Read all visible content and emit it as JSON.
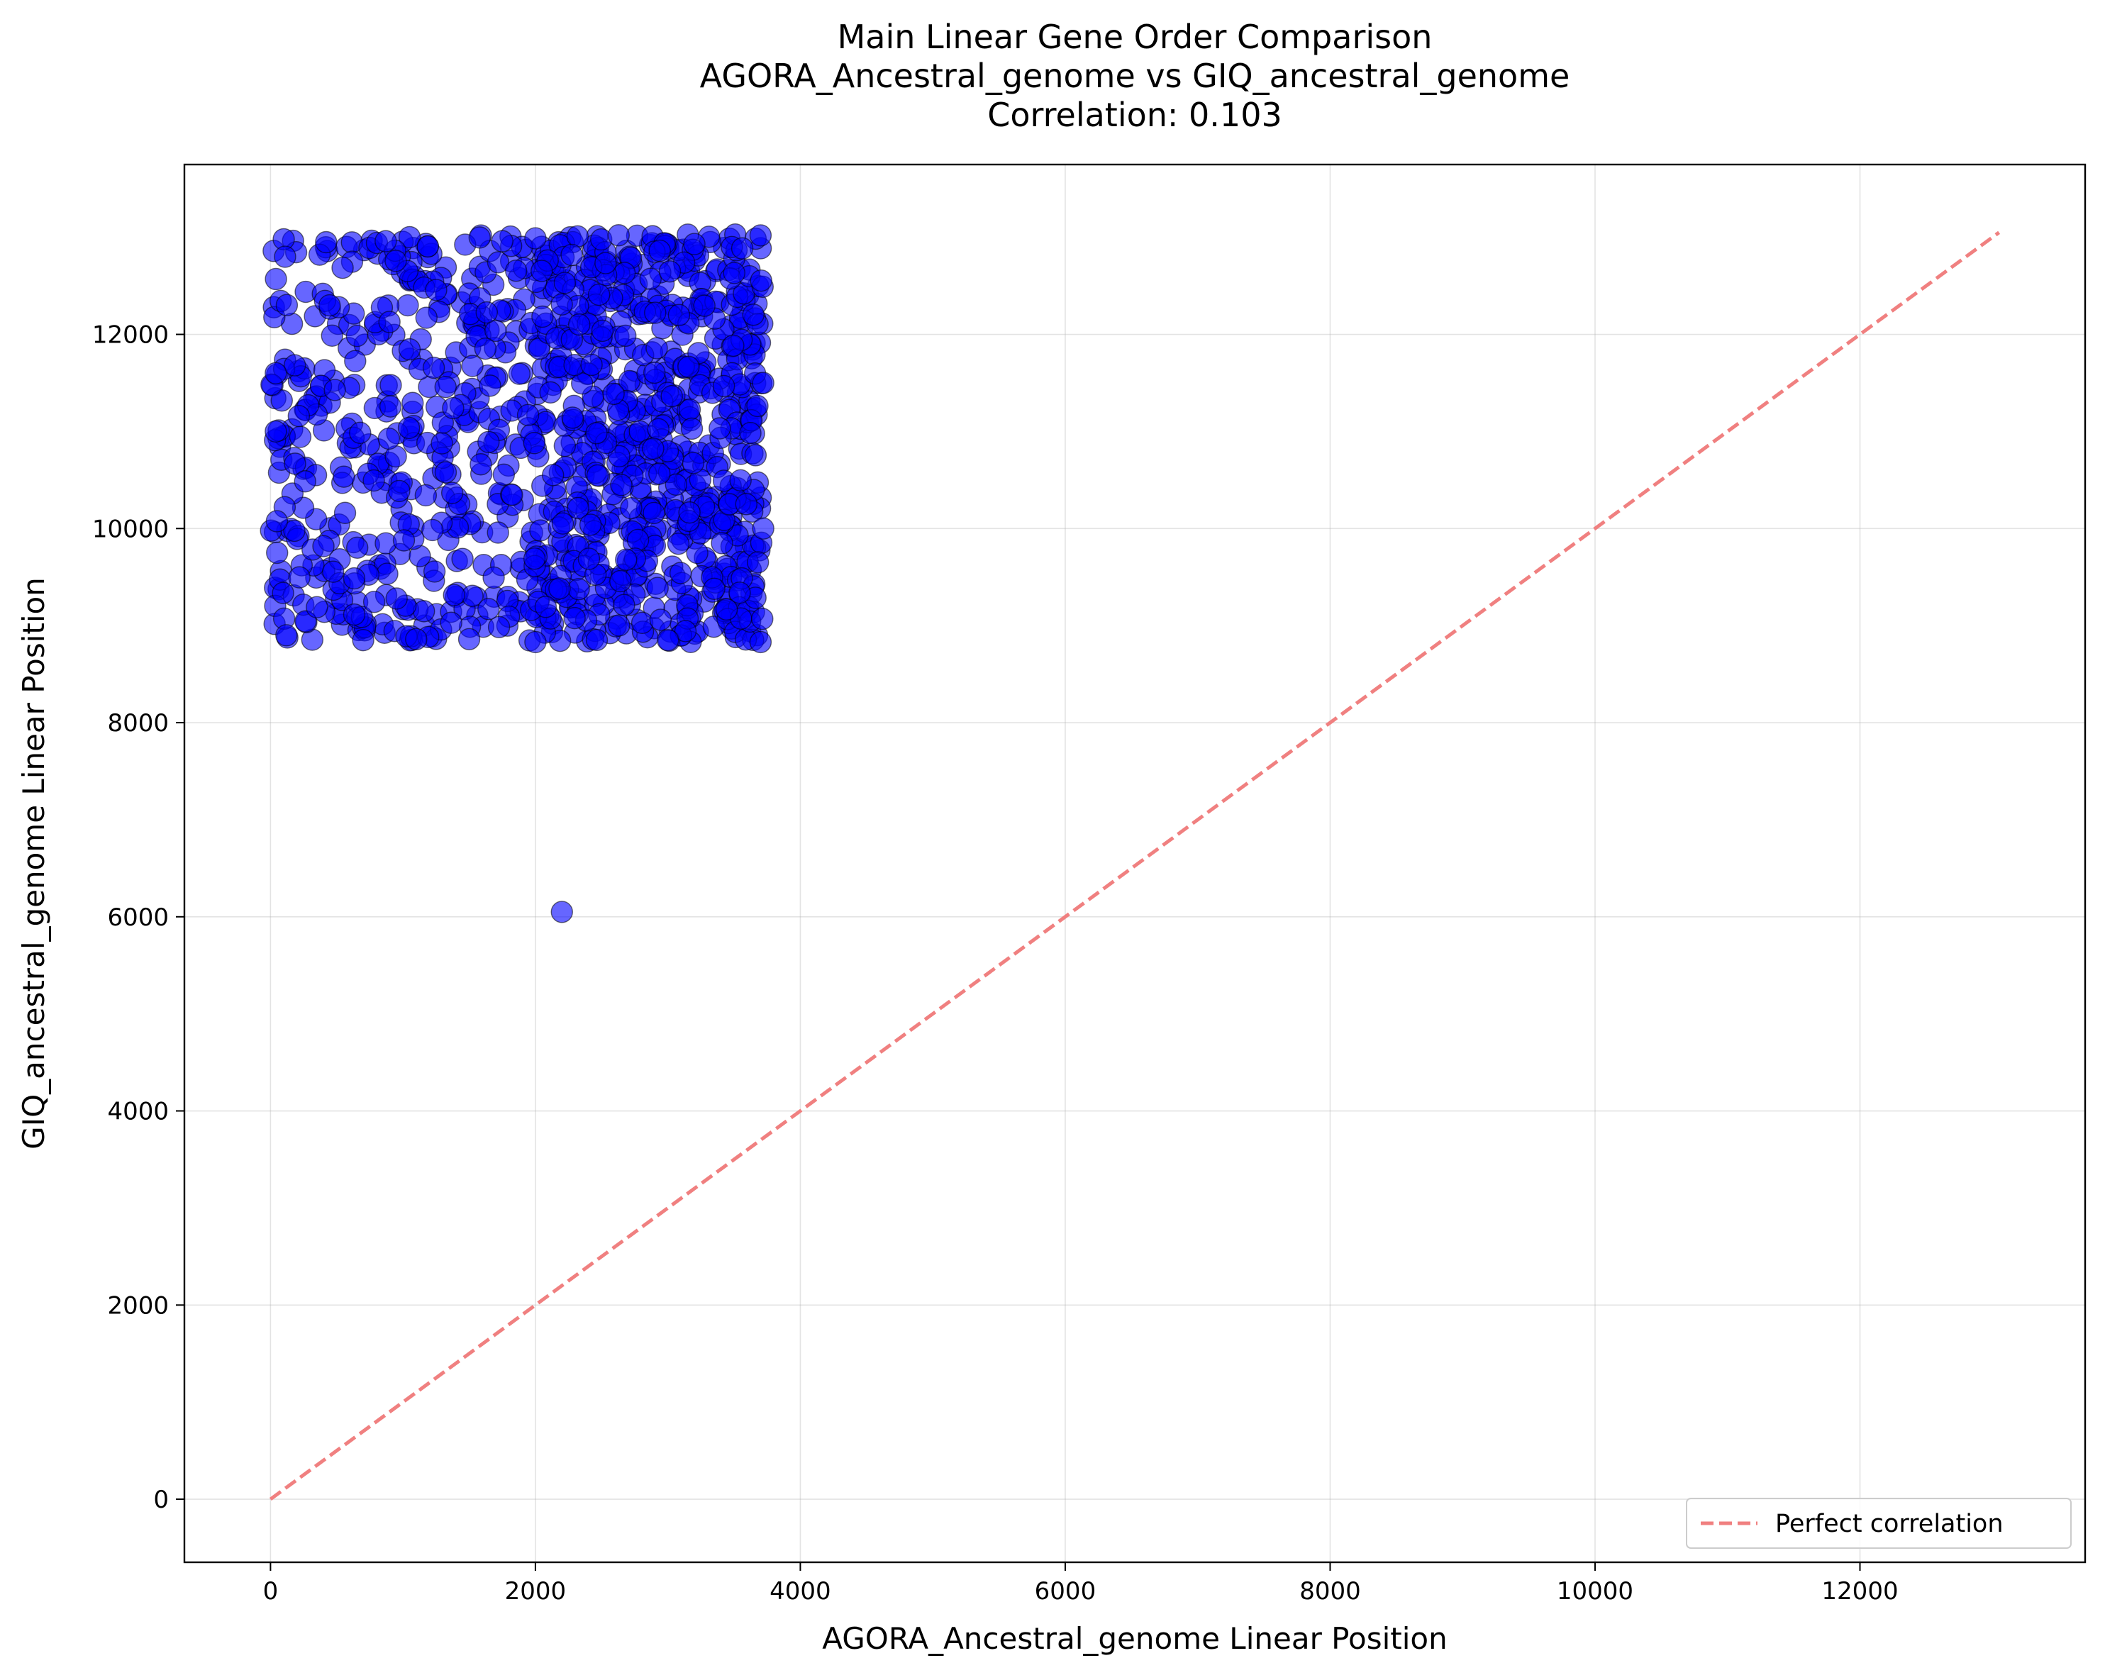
{
  "chart_data": {
    "type": "scatter",
    "title_lines": [
      "Main Linear Gene Order Comparison",
      "AGORA_Ancestral_genome vs GIQ_ancestral_genome",
      "Correlation: 0.103"
    ],
    "xlabel": "AGORA_Ancestral_genome Linear Position",
    "ylabel": "GIQ_ancestral_genome Linear Position",
    "xlim": [
      -650,
      13700
    ],
    "ylim": [
      -650,
      13750
    ],
    "xticks": [
      0,
      2000,
      4000,
      6000,
      8000,
      10000,
      12000
    ],
    "yticks": [
      0,
      2000,
      4000,
      6000,
      8000,
      10000,
      12000
    ],
    "grid": true,
    "point_color": "#0000ff",
    "reference_line": {
      "name": "Perfect correlation",
      "x": [
        0,
        13050
      ],
      "y": [
        0,
        13050
      ],
      "color": "#f08080",
      "style": "dashed"
    },
    "legend": {
      "position": "bottom-right",
      "entries": [
        "Perfect correlation"
      ]
    },
    "scatter_cloud": {
      "description_count": 1200,
      "x_range": [
        0,
        3720
      ],
      "y_range": [
        8830,
        13030
      ],
      "dense_from_x": 2000
    },
    "points": [
      [
        2200,
        6050
      ],
      [
        100,
        12980
      ],
      [
        110,
        12800
      ],
      [
        420,
        12950
      ],
      [
        870,
        12960
      ],
      [
        1750,
        12960
      ],
      [
        2000,
        12990
      ],
      [
        3700,
        13020
      ],
      [
        3700,
        8830
      ],
      [
        2000,
        8830
      ],
      [
        120,
        8900
      ],
      [
        50,
        9750
      ],
      [
        40,
        11000
      ],
      [
        40,
        11600
      ],
      [
        3720,
        11500
      ],
      [
        3720,
        10000
      ],
      [
        700,
        8850
      ],
      [
        1100,
        8860
      ],
      [
        1500,
        8860
      ],
      [
        3000,
        8850
      ]
    ]
  }
}
